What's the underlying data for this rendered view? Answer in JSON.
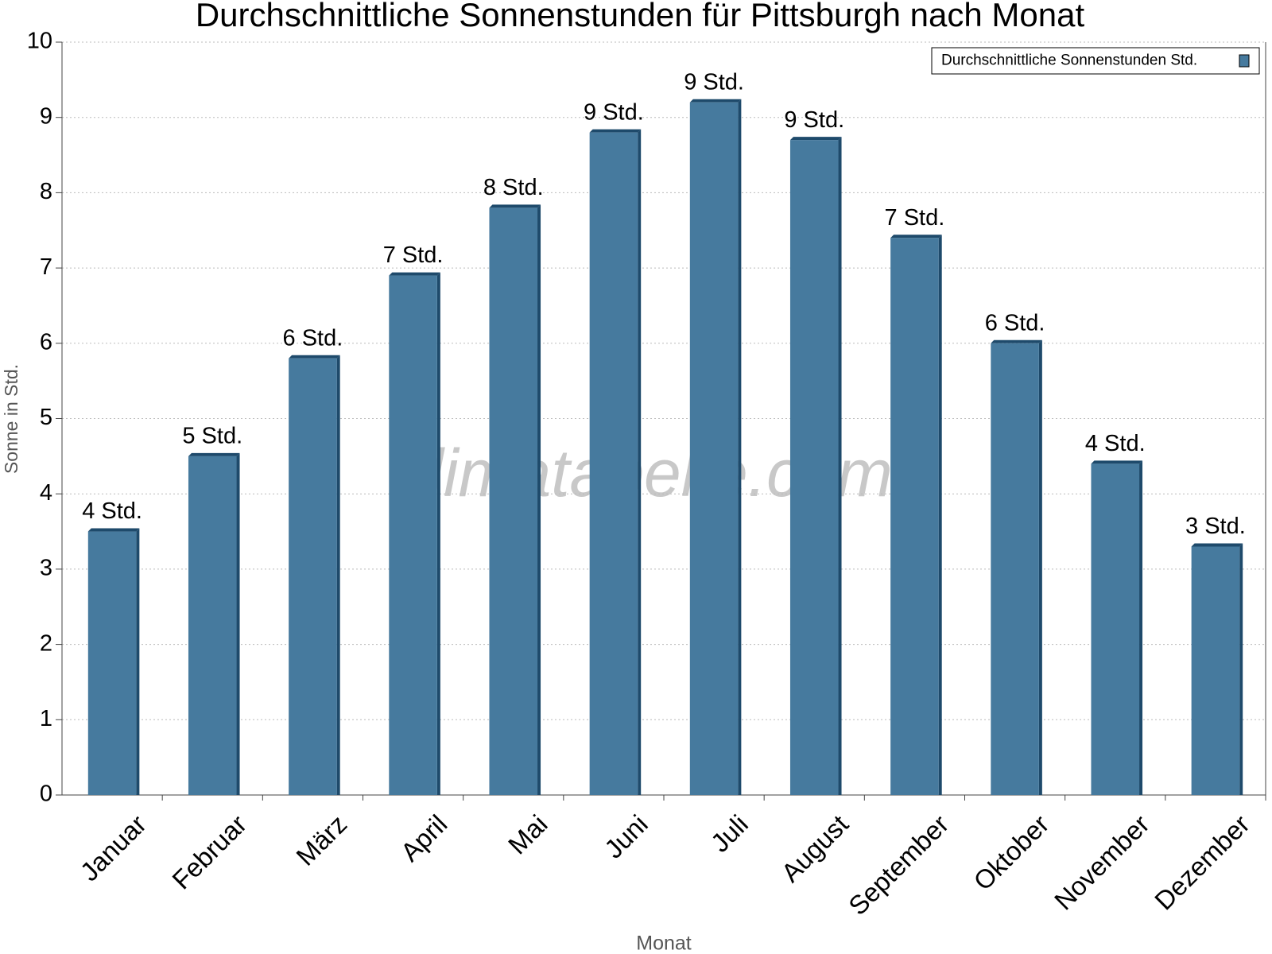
{
  "chart_data": {
    "type": "bar",
    "title": "Durchschnittliche Sonnenstunden für Pittsburgh nach Monat",
    "x_label": "Monat",
    "y_label": "Sonne in Std.",
    "watermark": "klimatabelle.com",
    "categories": [
      "Januar",
      "Februar",
      "März",
      "April",
      "Mai",
      "Juni",
      "Juli",
      "August",
      "September",
      "Oktober",
      "November",
      "Dezember"
    ],
    "series": [
      {
        "name": "Durchschnittliche Sonnenstunden Std.",
        "color": "#467a9e",
        "values": [
          3.5,
          4.5,
          5.8,
          6.9,
          7.8,
          8.8,
          9.2,
          8.7,
          7.4,
          6.0,
          4.4,
          3.3
        ],
        "value_labels": [
          "4 Std.",
          "5 Std.",
          "6 Std.",
          "7 Std.",
          "8 Std.",
          "9 Std.",
          "9 Std.",
          "9 Std.",
          "7 Std.",
          "6 Std.",
          "4 Std.",
          "3 Std."
        ]
      }
    ],
    "ylim": [
      0,
      10
    ],
    "yticks": [
      0,
      1,
      2,
      3,
      4,
      5,
      6,
      7,
      8,
      9,
      10
    ],
    "grid": true,
    "legend": "top-right"
  }
}
